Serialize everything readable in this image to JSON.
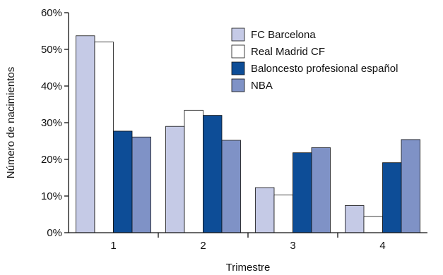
{
  "chart_data": {
    "type": "bar",
    "title": "",
    "xlabel": "Trimestre",
    "ylabel": "Número de nacimientos",
    "categories": [
      "1",
      "2",
      "3",
      "4"
    ],
    "ylim": [
      0,
      60
    ],
    "yticks": [
      "0%",
      "10%",
      "20%",
      "30%",
      "40%",
      "50%",
      "60%"
    ],
    "grid": false,
    "legend_position": "top-right",
    "series": [
      {
        "name": "FC Barcelona",
        "color": "#c5cae6",
        "values": [
          53.7,
          29.0,
          12.3,
          7.4
        ]
      },
      {
        "name": "Real Madrid CF",
        "color": "#ffffff",
        "values": [
          52.0,
          33.4,
          10.3,
          4.4
        ]
      },
      {
        "name": "Baloncesto profesional español",
        "color": "#0d4d97",
        "values": [
          27.7,
          32.0,
          21.8,
          19.1
        ]
      },
      {
        "name": "NBA",
        "color": "#7f92c6",
        "values": [
          26.1,
          25.2,
          23.2,
          25.4
        ]
      }
    ]
  }
}
